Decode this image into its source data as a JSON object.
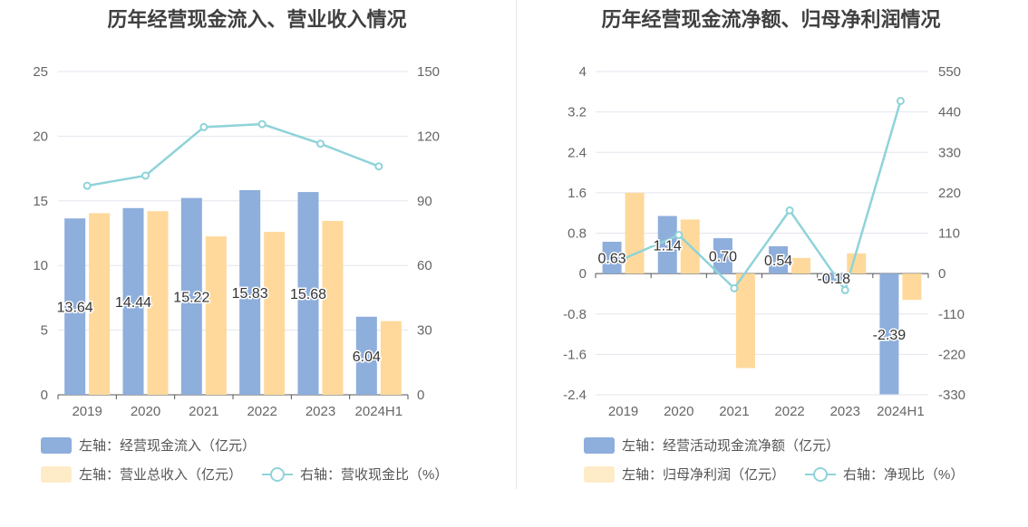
{
  "chart_data": [
    {
      "type": "bar",
      "title": "历年经营现金流入、营业收入情况",
      "categories": [
        "2019",
        "2020",
        "2021",
        "2022",
        "2023",
        "2024H1"
      ],
      "left_axis": {
        "min": 0,
        "max": 25,
        "ticks": [
          "0",
          "5",
          "10",
          "15",
          "20",
          "25"
        ],
        "tick_values": [
          0,
          5,
          10,
          15,
          20,
          25
        ]
      },
      "right_axis": {
        "min": 0,
        "max": 150,
        "ticks": [
          "0",
          "30",
          "60",
          "90",
          "120",
          "150"
        ],
        "tick_values": [
          0,
          30,
          60,
          90,
          120,
          150
        ]
      },
      "series": [
        {
          "name": "左轴：经营现金流入（亿元）",
          "kind": "bar",
          "axis": "left",
          "color": "#8eaedc",
          "values": [
            13.64,
            14.44,
            15.22,
            15.83,
            15.68,
            6.04
          ],
          "labels": [
            "13.64",
            "14.44",
            "15.22",
            "15.83",
            "15.68",
            "6.04"
          ]
        },
        {
          "name": "左轴：营业总收入（亿元）",
          "kind": "bar",
          "axis": "left",
          "color": "#fed99b",
          "values": [
            14.05,
            14.2,
            12.25,
            12.6,
            13.45,
            5.7
          ]
        },
        {
          "name": "右轴：营收现金比（%）",
          "kind": "line",
          "axis": "right",
          "color": "#8fd3d9",
          "values": [
            97.0,
            101.7,
            124.2,
            125.6,
            116.5,
            106.0
          ]
        }
      ]
    },
    {
      "type": "bar",
      "title": "历年经营现金流净额、归母净利润情况",
      "categories": [
        "2019",
        "2020",
        "2021",
        "2022",
        "2023",
        "2024H1"
      ],
      "left_axis": {
        "min": -2.4,
        "max": 4,
        "ticks": [
          "-2.4",
          "-1.6",
          "-0.8",
          "0",
          "0.8",
          "1.6",
          "2.4",
          "3.2",
          "4"
        ],
        "tick_values": [
          -2.4,
          -1.6,
          -0.8,
          0,
          0.8,
          1.6,
          2.4,
          3.2,
          4
        ]
      },
      "right_axis": {
        "min": -330,
        "max": 550,
        "ticks": [
          "-330",
          "-220",
          "-110",
          "0",
          "110",
          "220",
          "330",
          "440",
          "550"
        ],
        "tick_values": [
          -330,
          -220,
          -110,
          0,
          110,
          220,
          330,
          440,
          550
        ]
      },
      "series": [
        {
          "name": "左轴：经营活动现金流净额（亿元）",
          "kind": "bar",
          "axis": "left",
          "color": "#8eaedc",
          "values": [
            0.63,
            1.14,
            0.7,
            0.54,
            -0.18,
            -2.39
          ],
          "labels": [
            "0.63",
            "1.14",
            "0.70",
            "0.54",
            "-0.18",
            "-2.39"
          ]
        },
        {
          "name": "左轴：归母净利润（亿元）",
          "kind": "bar",
          "axis": "left",
          "color": "#fed99b",
          "values": [
            1.6,
            1.07,
            -1.87,
            0.31,
            0.4,
            -0.52
          ]
        },
        {
          "name": "右轴：净现比（%）",
          "kind": "line",
          "axis": "right",
          "color": "#8fd3d9",
          "values": [
            40,
            105,
            -40,
            172,
            -45,
            470
          ]
        }
      ]
    }
  ]
}
